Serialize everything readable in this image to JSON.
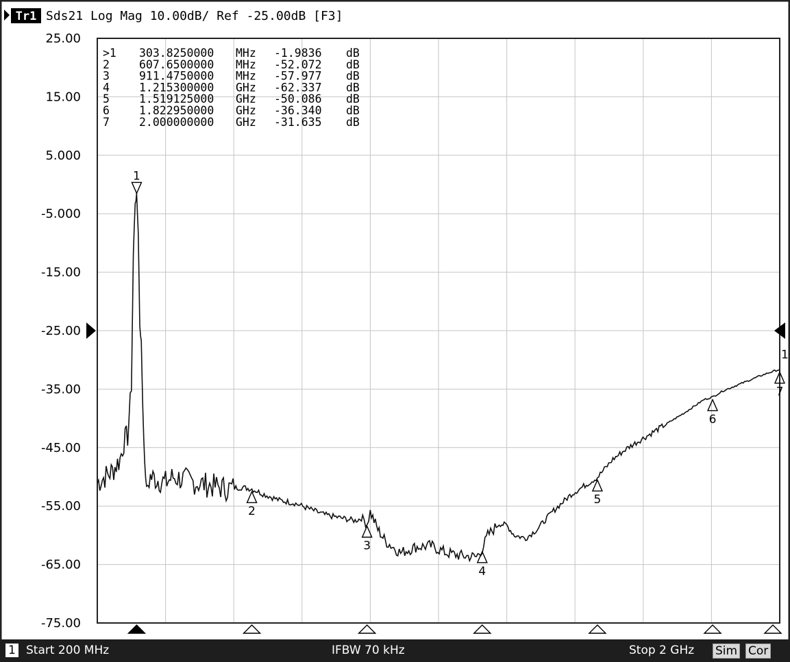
{
  "trace_header": {
    "trace_label": "Tr1",
    "text": "Sds21 Log Mag 10.00dB/ Ref -25.00dB [F3]"
  },
  "marker_table": [
    {
      "id": ">1",
      "freq": "303.8250000",
      "unit": "MHz",
      "value": "-1.9836",
      "vunit": "dB"
    },
    {
      "id": "2",
      "freq": "607.6500000",
      "unit": "MHz",
      "value": "-52.072",
      "vunit": "dB"
    },
    {
      "id": "3",
      "freq": "911.4750000",
      "unit": "MHz",
      "value": "-57.977",
      "vunit": "dB"
    },
    {
      "id": "4",
      "freq": "1.215300000",
      "unit": "GHz",
      "value": "-62.337",
      "vunit": "dB"
    },
    {
      "id": "5",
      "freq": "1.519125000",
      "unit": "GHz",
      "value": "-50.086",
      "vunit": "dB"
    },
    {
      "id": "6",
      "freq": "1.822950000",
      "unit": "GHz",
      "value": "-36.340",
      "vunit": "dB"
    },
    {
      "id": "7",
      "freq": "2.000000000",
      "unit": "GHz",
      "value": "-31.635",
      "vunit": "dB"
    }
  ],
  "footer": {
    "channel": "1",
    "start": "Start 200 MHz",
    "ifbw": "IFBW 70 kHz",
    "stop": "Stop 2 GHz",
    "sim": "Sim",
    "cor": "Cor"
  },
  "chart_data": {
    "type": "line",
    "xlim": [
      200,
      2000
    ],
    "ylim": [
      -75,
      25
    ],
    "grid": true,
    "y_tick_labels": [
      "25.00",
      "15.00",
      "5.000",
      "-5.000",
      "-15.00",
      "-25.00",
      "-35.00",
      "-45.00",
      "-55.00",
      "-65.00",
      "-75.00"
    ],
    "reference_level": -25,
    "series": [
      {
        "x": [
          200,
          220,
          240,
          260,
          270,
          280,
          290,
          295,
          300,
          303.8,
          308,
          312,
          316,
          320,
          325,
          330,
          340,
          360,
          380,
          400,
          430,
          460,
          500,
          540,
          580,
          607.65,
          640,
          680,
          720,
          760,
          800,
          840,
          880,
          900,
          911.475,
          920,
          930,
          940,
          960,
          1000,
          1040,
          1080,
          1120,
          1160,
          1200,
          1215.3,
          1230,
          1260,
          1280,
          1300,
          1330,
          1360,
          1400,
          1450,
          1519.125,
          1560,
          1600,
          1650,
          1700,
          1750,
          1800,
          1822.95,
          1850,
          1900,
          1950,
          1980,
          2000
        ],
        "y": [
          -51,
          -50,
          -49,
          -47,
          -44,
          -43,
          -35,
          -12,
          -3,
          -1.98,
          -8,
          -24,
          -27,
          -38,
          -48,
          -52,
          -50,
          -50.5,
          -51,
          -50,
          -50.5,
          -51,
          -51.5,
          -52,
          -51.8,
          -52.07,
          -53,
          -54,
          -54.5,
          -55.5,
          -56.5,
          -57,
          -57.5,
          -57,
          -57.98,
          -56,
          -57.5,
          -59,
          -61,
          -63,
          -62,
          -61.8,
          -63,
          -63.5,
          -63.7,
          -62.34,
          -60,
          -58,
          -58.3,
          -60,
          -60.5,
          -59,
          -56,
          -53,
          -50.09,
          -47,
          -45,
          -43,
          -41,
          -39,
          -36.8,
          -36.34,
          -35.3,
          -34,
          -32.7,
          -32,
          -31.64
        ]
      }
    ],
    "markers": [
      {
        "id": "1",
        "x": 303.825,
        "y": -1.9836
      },
      {
        "id": "2",
        "x": 607.65,
        "y": -52.072
      },
      {
        "id": "3",
        "x": 911.475,
        "y": -57.977
      },
      {
        "id": "4",
        "x": 1215.3,
        "y": -62.337
      },
      {
        "id": "5",
        "x": 1519.125,
        "y": -50.086
      },
      {
        "id": "6",
        "x": 1822.95,
        "y": -36.34
      },
      {
        "id": "7",
        "x": 2000,
        "y": -31.635
      }
    ]
  }
}
